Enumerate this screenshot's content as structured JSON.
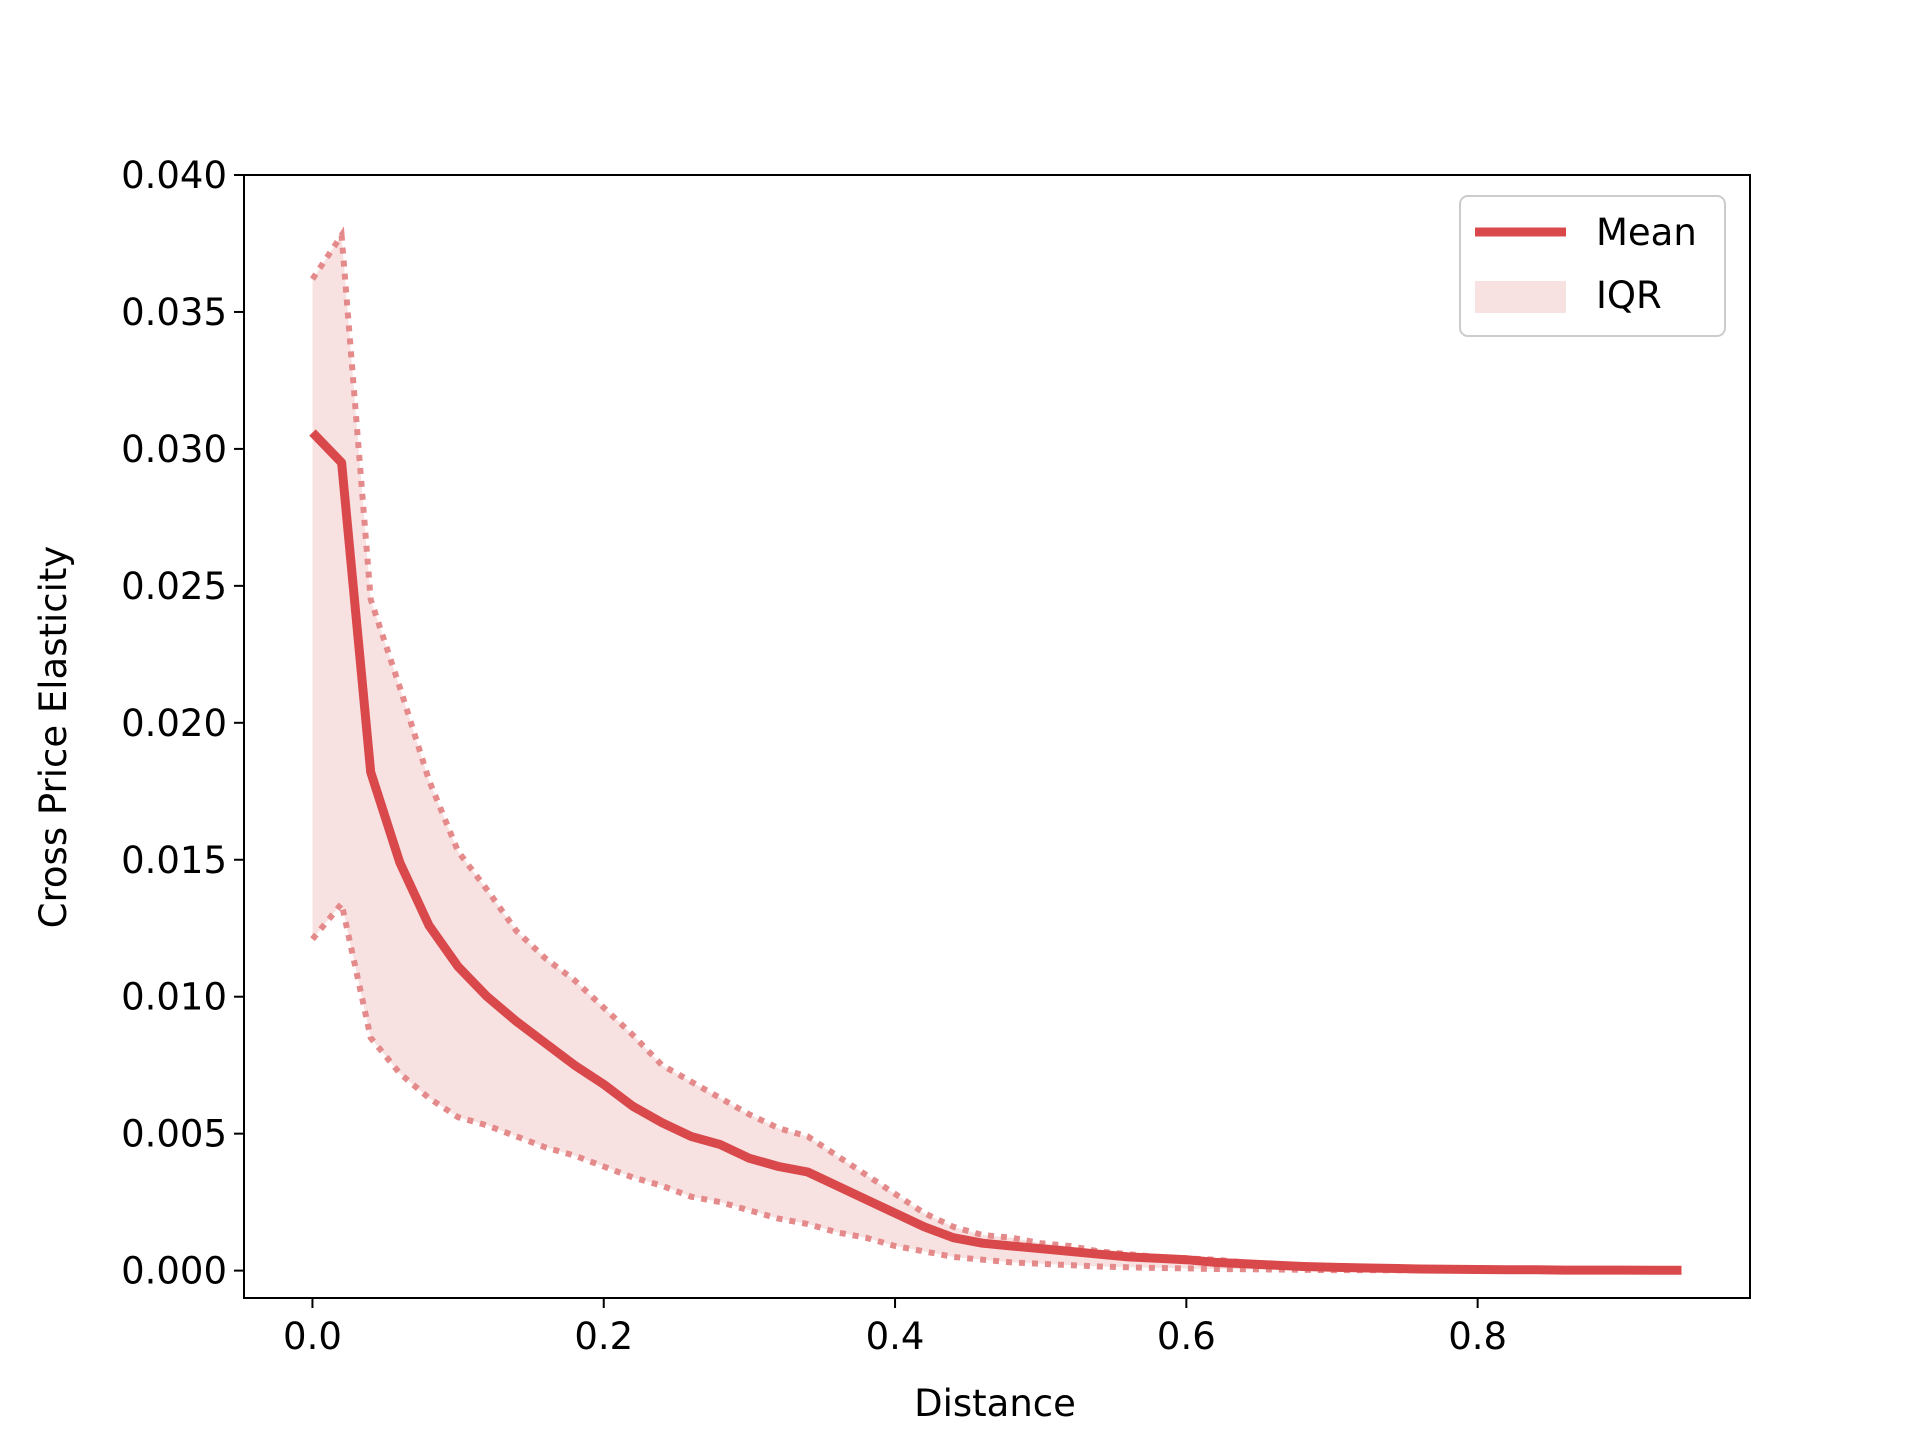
{
  "chart_data": {
    "type": "line",
    "title": "",
    "xlabel": "Distance",
    "ylabel": "Cross Price Elasticity",
    "xlim": [
      -0.047,
      0.987
    ],
    "ylim": [
      -0.001,
      0.04
    ],
    "xticks": [
      0.0,
      0.2,
      0.4,
      0.6,
      0.8
    ],
    "xtick_labels": [
      "0.0",
      "0.2",
      "0.4",
      "0.6",
      "0.8"
    ],
    "yticks": [
      0.0,
      0.005,
      0.01,
      0.015,
      0.02,
      0.025,
      0.03,
      0.035,
      0.04
    ],
    "ytick_labels": [
      "0.000",
      "0.005",
      "0.010",
      "0.015",
      "0.020",
      "0.025",
      "0.030",
      "0.035",
      "0.040"
    ],
    "grid": false,
    "legend_position": "top-right",
    "colors": {
      "mean": "#d9484b",
      "iqr_fill": "#f8e1e1",
      "iqr_bound": "#e58a8b"
    },
    "x": [
      0.0,
      0.02,
      0.04,
      0.06,
      0.08,
      0.1,
      0.12,
      0.14,
      0.16,
      0.18,
      0.2,
      0.22,
      0.24,
      0.26,
      0.28,
      0.3,
      0.32,
      0.34,
      0.36,
      0.38,
      0.4,
      0.42,
      0.44,
      0.46,
      0.48,
      0.5,
      0.52,
      0.54,
      0.56,
      0.58,
      0.6,
      0.62,
      0.64,
      0.66,
      0.68,
      0.7,
      0.72,
      0.74,
      0.76,
      0.78,
      0.8,
      0.82,
      0.84,
      0.86,
      0.88,
      0.9,
      0.92,
      0.94
    ],
    "series": [
      {
        "name": "Mean",
        "role": "line",
        "values": [
          0.0306,
          0.0295,
          0.0182,
          0.0149,
          0.0126,
          0.0111,
          0.01,
          0.0091,
          0.0083,
          0.0075,
          0.0068,
          0.006,
          0.0054,
          0.0049,
          0.0046,
          0.0041,
          0.0038,
          0.0036,
          0.0031,
          0.0026,
          0.0021,
          0.0016,
          0.0012,
          0.001,
          0.0009,
          0.0008,
          0.0007,
          0.0006,
          0.0005,
          0.00045,
          0.0004,
          0.0003,
          0.00025,
          0.0002,
          0.00015,
          0.00012,
          0.0001,
          8e-05,
          6e-05,
          5e-05,
          4e-05,
          3e-05,
          3e-05,
          2e-05,
          2e-05,
          2e-05,
          1e-05,
          1e-05
        ]
      },
      {
        "name": "IQR",
        "role": "band",
        "lower": [
          0.0121,
          0.0134,
          0.0085,
          0.0072,
          0.0063,
          0.0056,
          0.0053,
          0.0049,
          0.0045,
          0.0042,
          0.0038,
          0.0034,
          0.0031,
          0.0027,
          0.0025,
          0.0022,
          0.0019,
          0.0017,
          0.0014,
          0.0012,
          0.0009,
          0.0007,
          0.0005,
          0.0004,
          0.0003,
          0.00025,
          0.0002,
          0.00015,
          0.00012,
          0.0001,
          8e-05,
          6e-05,
          5e-05,
          4e-05,
          3e-05,
          2e-05,
          2e-05,
          1e-05,
          1e-05,
          1e-05,
          1e-05,
          0.0,
          0.0,
          0.0,
          0.0,
          0.0,
          0.0,
          0.0
        ],
        "upper": [
          0.0362,
          0.0378,
          0.0245,
          0.0213,
          0.0179,
          0.0153,
          0.0139,
          0.0124,
          0.0114,
          0.0106,
          0.0096,
          0.0086,
          0.0075,
          0.0069,
          0.0063,
          0.0057,
          0.0052,
          0.0049,
          0.0042,
          0.0035,
          0.0028,
          0.0021,
          0.0016,
          0.0013,
          0.0012,
          0.001,
          0.0009,
          0.0007,
          0.0006,
          0.0005,
          0.00045,
          0.0004,
          0.0003,
          0.00025,
          0.0002,
          0.00015,
          0.00012,
          0.0001,
          8e-05,
          6e-05,
          5e-05,
          4e-05,
          3e-05,
          3e-05,
          2e-05,
          2e-05,
          2e-05,
          1e-05
        ]
      }
    ]
  }
}
